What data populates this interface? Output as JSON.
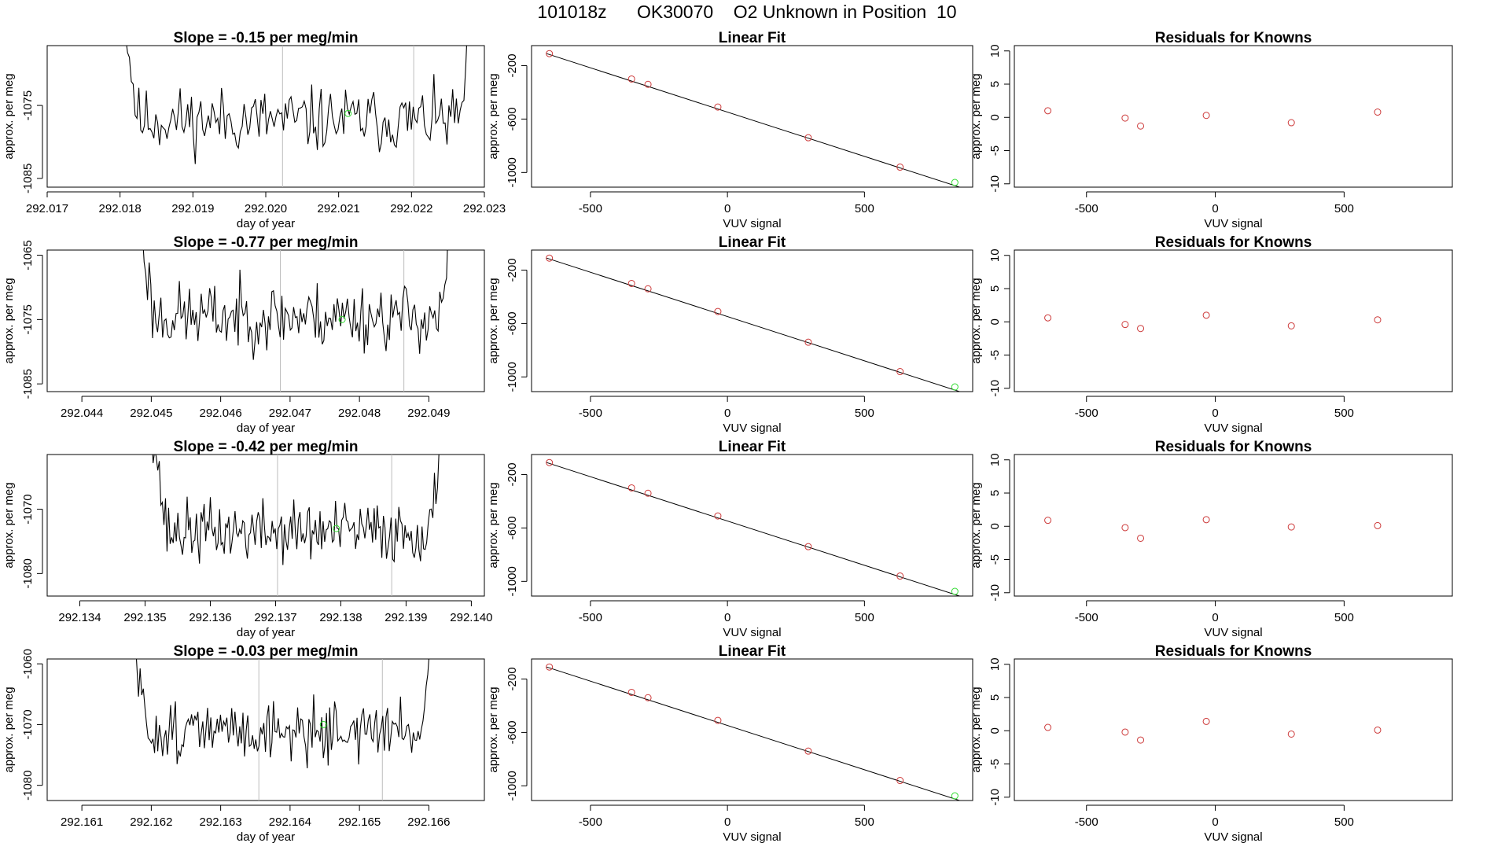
{
  "page_title": "101018z      OK30070    O2 Unknown in Position  10",
  "colors": {
    "line": "#000000",
    "known": "#cd3a3a",
    "unknown": "#33dd33",
    "vline": "#bdbdbd"
  },
  "chart_data": [
    {
      "type": "line",
      "title": "Slope =  -0.15  per meg/min",
      "xlabel": "day of year",
      "ylabel": "approx. per meg",
      "xlim": [
        292.017,
        292.023
      ],
      "xticks": [
        "292.017",
        "292.018",
        "292.019",
        "292.020",
        "292.021",
        "292.022",
        "292.023"
      ],
      "ylim": [
        -1086.2,
        -1066.8
      ],
      "yticks": [
        "-1085",
        "-1075"
      ],
      "window": [
        292.018,
        292.0229
      ],
      "vlines": [
        292.02023,
        292.02203
      ],
      "unknown_point": {
        "x": 292.02113,
        "y": -1076.1
      },
      "series_seed": 11,
      "series": [
        {
          "baseline": -1077.0,
          "amplitude": 2.2
        }
      ]
    },
    {
      "type": "scatter",
      "title": "Linear Fit",
      "xlabel": "VUV signal",
      "ylabel": "approx. per meg",
      "xlim": [
        -715,
        895
      ],
      "xticks": [
        "-500",
        "0",
        "500"
      ],
      "ylim": [
        -1110,
        -50
      ],
      "yticks": [
        "-200",
        "-600",
        "-1000"
      ],
      "fit_line": {
        "x": [
          -660,
          855
        ],
        "y": [
          -110,
          -1115
        ]
      },
      "known_points": {
        "x": [
          -650,
          -350,
          -290,
          -35,
          295,
          630
        ],
        "y": [
          -110,
          -300,
          -340,
          -510,
          -740,
          -960
        ]
      },
      "unknown_point": {
        "x": 830,
        "y": -1075
      }
    },
    {
      "type": "scatter",
      "title": "Residuals for Knowns",
      "xlabel": "VUV signal",
      "ylabel": "approx. per meg",
      "xlim": [
        -780,
        920
      ],
      "xticks": [
        "-500",
        "0",
        "500"
      ],
      "ylim": [
        -10.5,
        10.8
      ],
      "yticks": [
        "10",
        "5",
        "0",
        "-5",
        "-10"
      ],
      "points": {
        "x": [
          -650,
          -350,
          -290,
          -35,
          295,
          630
        ],
        "y": [
          1.0,
          -0.1,
          -1.3,
          0.3,
          -0.8,
          0.8
        ]
      }
    },
    {
      "type": "line",
      "title": "Slope =  -0.77  per meg/min",
      "xlabel": "day of year",
      "ylabel": "approx. per meg",
      "xlim": [
        292.0435,
        292.0498
      ],
      "xticks": [
        "292.044",
        "292.045",
        "292.046",
        "292.047",
        "292.048",
        "292.049"
      ],
      "ylim": [
        -1086.2,
        -1064.2
      ],
      "yticks": [
        "-1085",
        "-1075",
        "-1065"
      ],
      "window": [
        292.0448,
        292.0494
      ],
      "vlines": [
        292.04686,
        292.04864
      ],
      "unknown_point": {
        "x": 292.04775,
        "y": -1075.0
      },
      "series_seed": 23,
      "series": [
        {
          "baseline": -1074.5,
          "amplitude": 2.6
        }
      ]
    },
    {
      "type": "scatter",
      "title": "Linear Fit",
      "xlabel": "VUV signal",
      "ylabel": "approx. per meg",
      "xlim": [
        -715,
        895
      ],
      "xticks": [
        "-500",
        "0",
        "500"
      ],
      "ylim": [
        -1110,
        -50
      ],
      "yticks": [
        "-200",
        "-600",
        "-1000"
      ],
      "fit_line": {
        "x": [
          -660,
          855
        ],
        "y": [
          -110,
          -1115
        ]
      },
      "known_points": {
        "x": [
          -650,
          -350,
          -290,
          -35,
          295,
          630
        ],
        "y": [
          -110,
          -300,
          -340,
          -510,
          -740,
          -960
        ]
      },
      "unknown_point": {
        "x": 830,
        "y": -1075
      }
    },
    {
      "type": "scatter",
      "title": "Residuals for Knowns",
      "xlabel": "VUV signal",
      "ylabel": "approx. per meg",
      "xlim": [
        -780,
        920
      ],
      "xticks": [
        "-500",
        "0",
        "500"
      ],
      "ylim": [
        -10.5,
        10.8
      ],
      "yticks": [
        "10",
        "5",
        "0",
        "-5",
        "-10"
      ],
      "points": {
        "x": [
          -650,
          -350,
          -290,
          -35,
          295,
          630
        ],
        "y": [
          0.6,
          -0.4,
          -1.0,
          1.0,
          -0.6,
          0.3
        ]
      }
    },
    {
      "type": "line",
      "title": "Slope =  -0.42  per meg/min",
      "xlabel": "day of year",
      "ylabel": "approx. per meg",
      "xlim": [
        292.1335,
        292.1402
      ],
      "xticks": [
        "292.134",
        "292.135",
        "292.136",
        "292.137",
        "292.138",
        "292.139",
        "292.140"
      ],
      "ylim": [
        -1083.5,
        -1061.5
      ],
      "yticks": [
        "-1080",
        "-1070"
      ],
      "window": [
        292.1351,
        292.1396
      ],
      "vlines": [
        292.13703,
        292.13878
      ],
      "unknown_point": {
        "x": 292.13793,
        "y": -1073.0
      },
      "series_seed": 37,
      "series": [
        {
          "baseline": -1073.5,
          "amplitude": 2.4
        }
      ]
    },
    {
      "type": "scatter",
      "title": "Linear Fit",
      "xlabel": "VUV signal",
      "ylabel": "approx. per meg",
      "xlim": [
        -715,
        895
      ],
      "xticks": [
        "-500",
        "0",
        "500"
      ],
      "ylim": [
        -1110,
        -50
      ],
      "yticks": [
        "-200",
        "-600",
        "-1000"
      ],
      "fit_line": {
        "x": [
          -660,
          855
        ],
        "y": [
          -110,
          -1115
        ]
      },
      "known_points": {
        "x": [
          -650,
          -350,
          -290,
          -35,
          295,
          630
        ],
        "y": [
          -110,
          -300,
          -340,
          -510,
          -740,
          -960
        ]
      },
      "unknown_point": {
        "x": 830,
        "y": -1075
      }
    },
    {
      "type": "scatter",
      "title": "Residuals for Knowns",
      "xlabel": "VUV signal",
      "ylabel": "approx. per meg",
      "xlim": [
        -780,
        920
      ],
      "xticks": [
        "-500",
        "0",
        "500"
      ],
      "ylim": [
        -10.5,
        10.8
      ],
      "yticks": [
        "10",
        "5",
        "0",
        "-5",
        "-10"
      ],
      "points": {
        "x": [
          -650,
          -350,
          -290,
          -35,
          295,
          630
        ],
        "y": [
          0.9,
          -0.2,
          -1.8,
          1.0,
          -0.1,
          0.1
        ]
      }
    },
    {
      "type": "line",
      "title": "Slope =  -0.03  per meg/min",
      "xlabel": "day of year",
      "ylabel": "approx. per meg",
      "xlim": [
        292.1605,
        292.1668
      ],
      "xticks": [
        "292.161",
        "292.162",
        "292.163",
        "292.164",
        "292.165",
        "292.166"
      ],
      "ylim": [
        -1082.5,
        -1059.2
      ],
      "yticks": [
        "-1080",
        "-1070",
        "-1060"
      ],
      "window": [
        292.1617,
        292.1661
      ],
      "vlines": [
        292.16355,
        292.16533
      ],
      "unknown_point": {
        "x": 292.16448,
        "y": -1070.0
      },
      "series_seed": 51,
      "series": [
        {
          "baseline": -1071.0,
          "amplitude": 2.4
        }
      ]
    },
    {
      "type": "scatter",
      "title": "Linear Fit",
      "xlabel": "VUV signal",
      "ylabel": "approx. per meg",
      "xlim": [
        -715,
        895
      ],
      "xticks": [
        "-500",
        "0",
        "500"
      ],
      "ylim": [
        -1110,
        -50
      ],
      "yticks": [
        "-200",
        "-600",
        "-1000"
      ],
      "fit_line": {
        "x": [
          -660,
          855
        ],
        "y": [
          -110,
          -1115
        ]
      },
      "known_points": {
        "x": [
          -650,
          -350,
          -290,
          -35,
          295,
          630
        ],
        "y": [
          -110,
          -300,
          -340,
          -510,
          -740,
          -960
        ]
      },
      "unknown_point": {
        "x": 830,
        "y": -1075
      }
    },
    {
      "type": "scatter",
      "title": "Residuals for Knowns",
      "xlabel": "VUV signal",
      "ylabel": "approx. per meg",
      "xlim": [
        -780,
        920
      ],
      "xticks": [
        "-500",
        "0",
        "500"
      ],
      "ylim": [
        -10.5,
        10.8
      ],
      "yticks": [
        "10",
        "5",
        "0",
        "-5",
        "-10"
      ],
      "points": {
        "x": [
          -650,
          -350,
          -290,
          -35,
          295,
          630
        ],
        "y": [
          0.5,
          -0.2,
          -1.4,
          1.4,
          -0.5,
          0.1
        ]
      }
    }
  ]
}
